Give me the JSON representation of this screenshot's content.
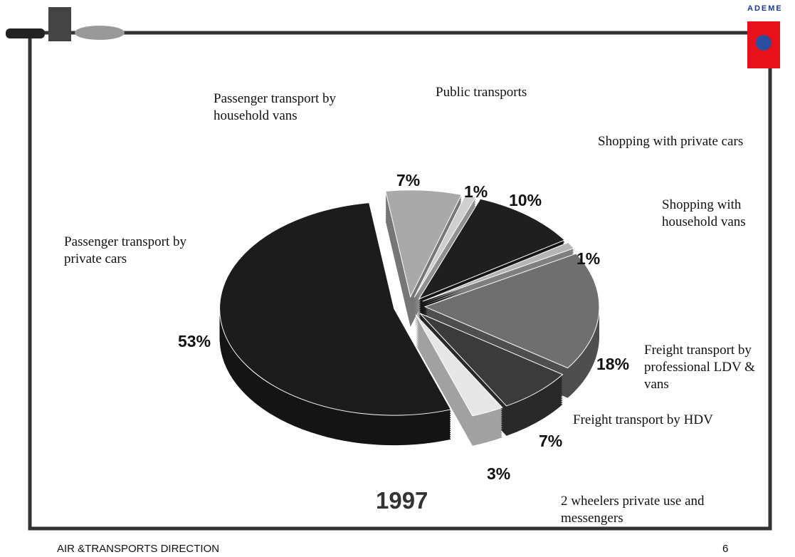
{
  "chart_data": {
    "type": "pie",
    "categories": [
      "Passenger transport by private cars",
      "Passenger transport by household vans",
      "Public transports",
      "Shopping with private cars",
      "Shopping with household vans",
      "Freight transport by professional LDV & vans",
      "Freight transport by HDV",
      "2 wheelers private use and messengers"
    ],
    "values": [
      53,
      7,
      1,
      10,
      1,
      18,
      7,
      3
    ],
    "value_labels": [
      "53%",
      "7%",
      "1%",
      "10%",
      "1%",
      "18%",
      "7%",
      "3%"
    ],
    "colors": [
      "#1c1c1c",
      "#a9a9a9",
      "#cfcfcf",
      "#1f1f1f",
      "#b5b5b5",
      "#6f6f6f",
      "#3b3b3b",
      "#e6e6e6"
    ],
    "annotation": "1997"
  },
  "footer": {
    "left": "AIR &TRANSPORTS DIRECTION",
    "page": "6"
  },
  "logo": "ADEME"
}
